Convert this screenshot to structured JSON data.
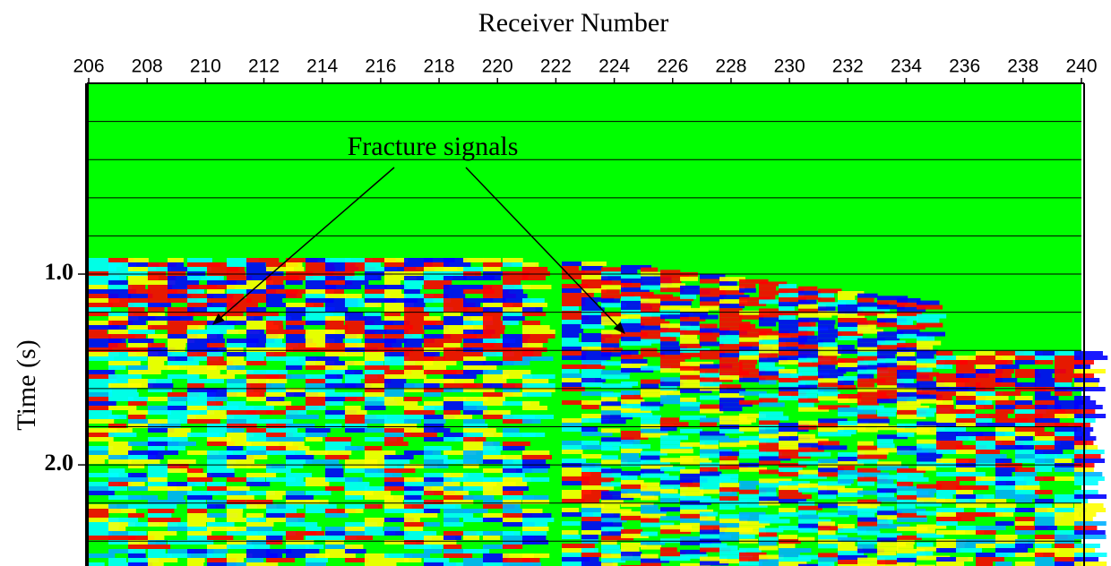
{
  "chart_data": {
    "type": "seismic",
    "title": "Receiver Number",
    "y_label": "Time (s)",
    "annotation": "Fracture signals",
    "xlim": [
      206,
      240
    ],
    "xticks": [
      206,
      208,
      210,
      212,
      214,
      216,
      218,
      220,
      222,
      224,
      226,
      228,
      230,
      232,
      234,
      236,
      238,
      240
    ],
    "ylim": [
      0,
      2.53
    ],
    "yticks": [
      {
        "value": 1,
        "label": "1.0"
      },
      {
        "value": 2,
        "label": "2.0"
      }
    ],
    "ygrid": [
      0.2,
      0.4,
      0.6,
      0.8,
      1,
      1.2,
      1.4,
      1.6,
      1.8,
      2,
      2.2,
      2.4
    ],
    "background_color": "#00ff00"
  }
}
